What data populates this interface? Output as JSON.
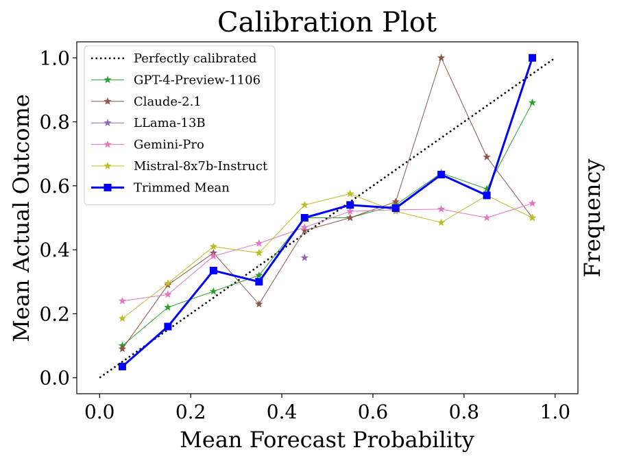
{
  "chart_data": {
    "type": "line",
    "title": "Calibration Plot",
    "xlabel": "Mean Forecast Probability",
    "ylabel": "Mean Actual Outcome",
    "ylabel_right": "Frequency",
    "xlim": [
      -0.05,
      1.05
    ],
    "ylim": [
      -0.05,
      1.05
    ],
    "xticks": [
      "0.0",
      "0.2",
      "0.4",
      "0.6",
      "0.8",
      "1.0"
    ],
    "yticks": [
      "0.0",
      "0.2",
      "0.4",
      "0.6",
      "0.8",
      "1.0"
    ],
    "grid": false,
    "legend_position": "upper-left",
    "series": [
      {
        "name": "Perfectly calibrated",
        "style": "dotted",
        "color": "#000000",
        "x": [
          0.0,
          1.0
        ],
        "y": [
          0.0,
          1.0
        ]
      },
      {
        "name": "GPT-4-Preview-1106",
        "color": "#2ca02c",
        "marker": "star",
        "x": [
          0.05,
          0.15,
          0.25,
          0.35,
          0.45,
          0.55,
          0.65,
          0.75,
          0.85,
          0.95
        ],
        "y": [
          0.1,
          0.22,
          0.27,
          0.32,
          0.5,
          0.5,
          0.54,
          0.64,
          0.59,
          0.86
        ]
      },
      {
        "name": "Claude-2.1",
        "color": "#8c564b",
        "marker": "star",
        "x": [
          0.05,
          0.15,
          0.25,
          0.35,
          0.45,
          0.55,
          0.65,
          0.75,
          0.85,
          0.95
        ],
        "y": [
          0.09,
          0.29,
          0.39,
          0.23,
          0.46,
          0.5,
          0.55,
          1.0,
          0.69,
          0.5
        ]
      },
      {
        "name": "LLama-13B",
        "color": "#9467bd",
        "marker": "star",
        "x": [
          0.45
        ],
        "y": [
          0.375
        ]
      },
      {
        "name": "Gemini-Pro",
        "color": "#e377c2",
        "marker": "star",
        "x": [
          0.05,
          0.15,
          0.25,
          0.35,
          0.45,
          0.55,
          0.65,
          0.75,
          0.85,
          0.95
        ],
        "y": [
          0.24,
          0.26,
          0.38,
          0.42,
          0.47,
          0.52,
          0.525,
          0.527,
          0.5,
          0.545
        ]
      },
      {
        "name": "Mistral-8x7b-Instruct",
        "color": "#bcbd22",
        "marker": "star",
        "x": [
          0.05,
          0.15,
          0.25,
          0.35,
          0.45,
          0.55,
          0.65,
          0.75,
          0.85,
          0.95
        ],
        "y": [
          0.185,
          0.295,
          0.41,
          0.39,
          0.54,
          0.575,
          0.52,
          0.485,
          0.57,
          0.5
        ]
      },
      {
        "name": "Trimmed Mean",
        "color": "#0000ff",
        "marker": "square",
        "style": "bold",
        "x": [
          0.05,
          0.15,
          0.25,
          0.35,
          0.45,
          0.55,
          0.65,
          0.75,
          0.85,
          0.95
        ],
        "y": [
          0.035,
          0.16,
          0.335,
          0.3,
          0.5,
          0.54,
          0.53,
          0.635,
          0.57,
          1.0
        ]
      }
    ]
  }
}
